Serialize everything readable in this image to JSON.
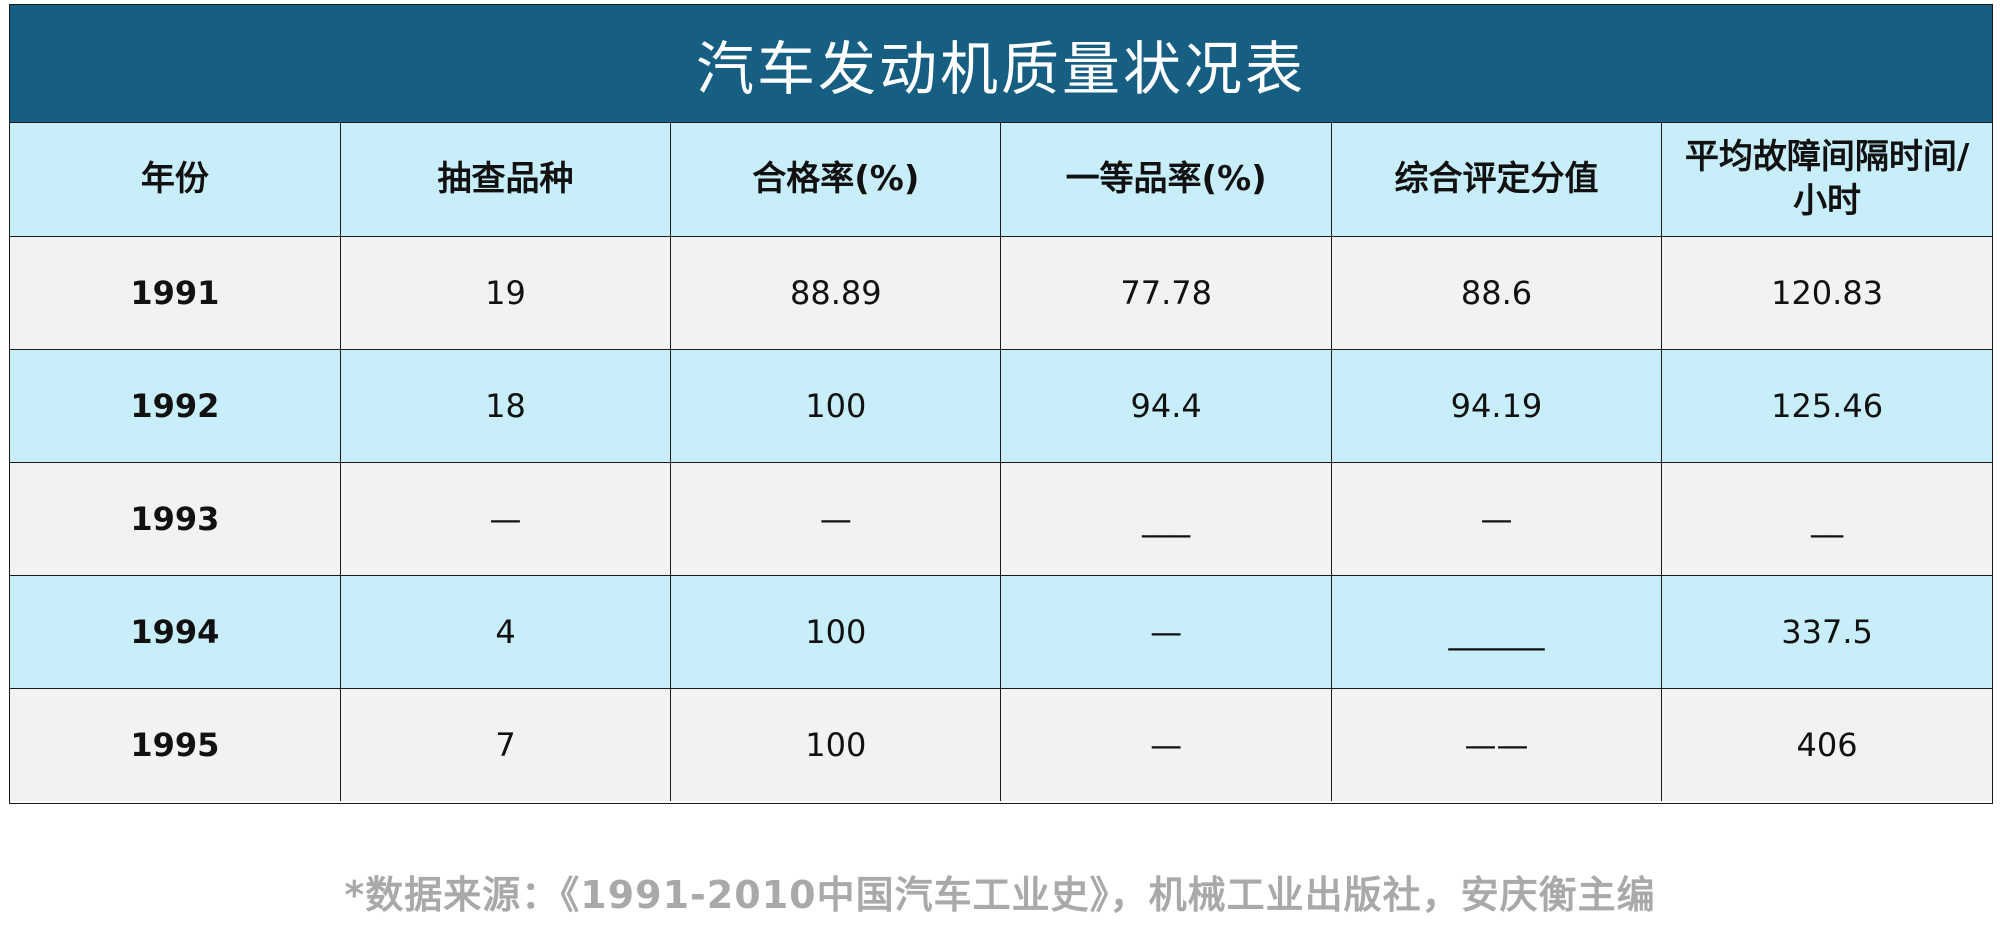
{
  "title": "汽车发动机质量状况表",
  "table": {
    "headers": [
      "年份",
      "抽查品种",
      "合格率(%)",
      "一等品率(%)",
      "综合评定分值",
      "平均故障间隔时间/\n小时"
    ],
    "rows": [
      {
        "year": "1991",
        "cells": [
          "19",
          "88.89",
          "77.78",
          "88.6",
          "120.83"
        ]
      },
      {
        "year": "1992",
        "cells": [
          "18",
          "100",
          "94.4",
          "94.19",
          "125.46"
        ]
      },
      {
        "year": "1993",
        "cells": [
          "—",
          "—",
          "___",
          "—",
          "__"
        ]
      },
      {
        "year": "1994",
        "cells": [
          "4",
          "100",
          "—",
          "______",
          "337.5"
        ]
      },
      {
        "year": "1995",
        "cells": [
          "7",
          "100",
          "—",
          "——",
          "406"
        ]
      }
    ]
  },
  "footer": "*数据来源：《1991-2010中国汽车工业史》，机械工业出版社，安庆衡主编",
  "colors": {
    "title_bg": "#175f82",
    "header_bg": "#c8eefa",
    "row_gray": "#f2f2f2",
    "row_blue": "#c8eefa",
    "footer_text": "#a9a9a9"
  }
}
